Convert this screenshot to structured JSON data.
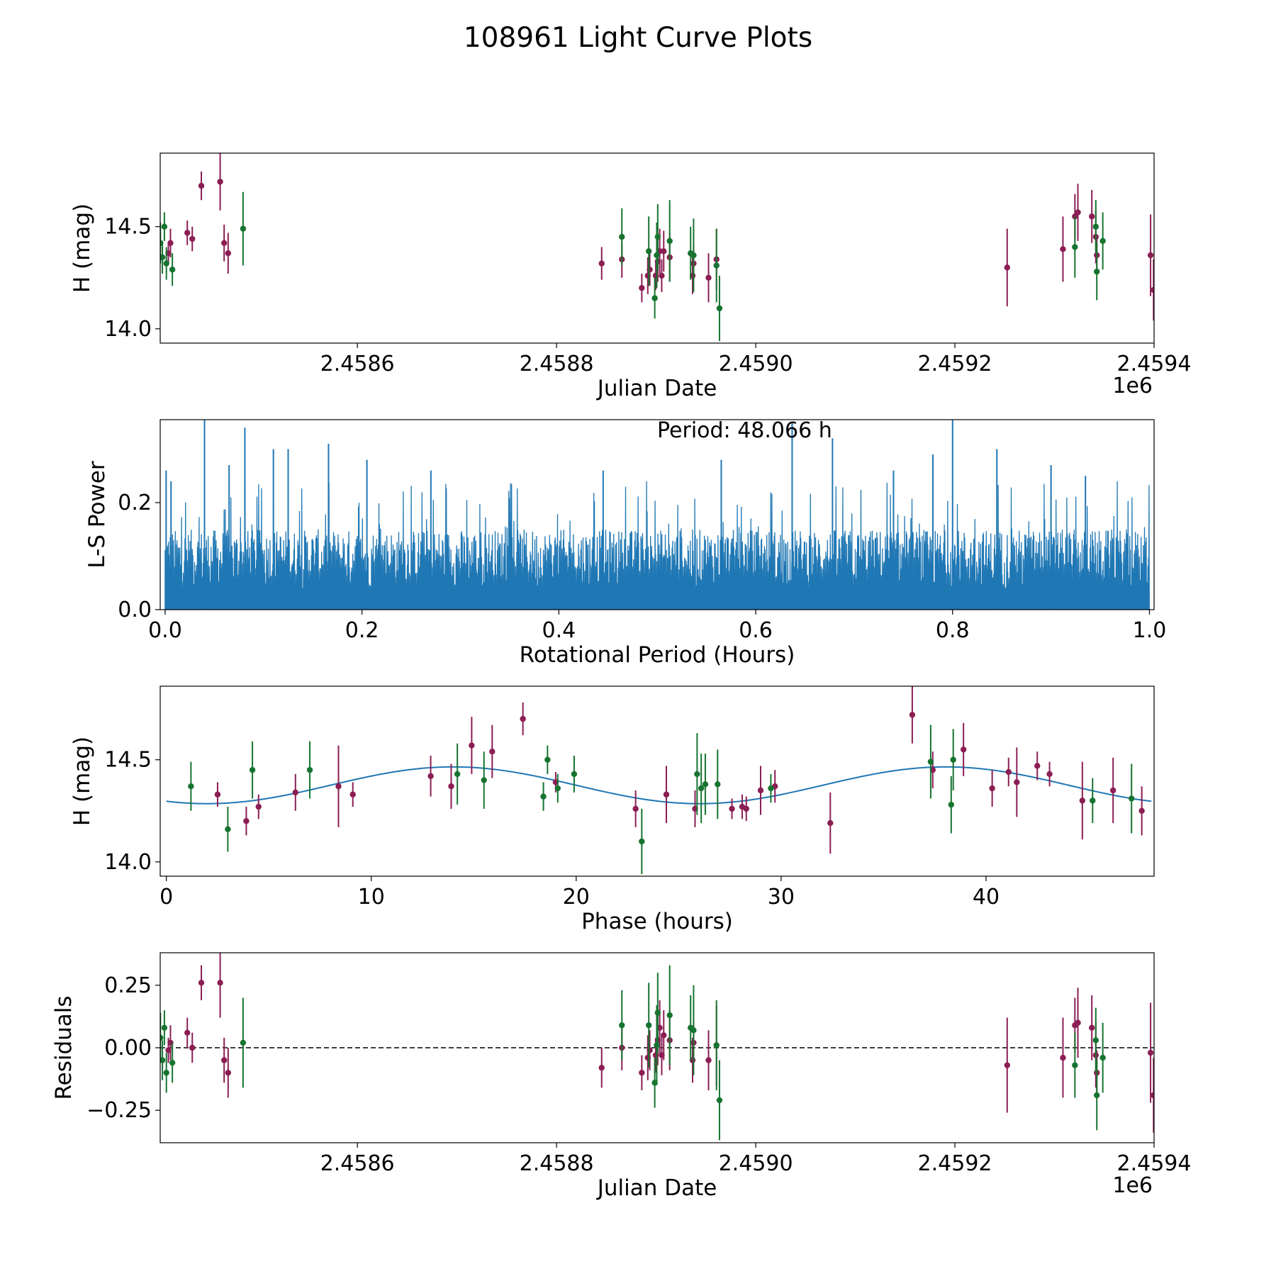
{
  "title": "108961 Light Curve Plots",
  "colors": {
    "series_a": "#8b1e54",
    "series_b": "#177430",
    "line": "#1f77b4",
    "refline": "#000000"
  },
  "chart_data": [
    {
      "id": "lightcurve",
      "type": "scatter",
      "xlabel": "Julian Date",
      "ylabel": "H (mag)",
      "x_offset_label": "1e6",
      "xlim": [
        2.458402,
        2.4594
      ],
      "ylim": [
        13.93,
        14.86
      ],
      "xticks": [
        2.4586,
        2.4588,
        2.459,
        2.4592,
        2.4594
      ],
      "xtick_labels": [
        "2.4586",
        "2.4588",
        "2.4590",
        "2.4592",
        "2.4594"
      ],
      "yticks": [
        14.0,
        14.5
      ],
      "ytick_labels": [
        "14.0",
        "14.5"
      ],
      "series": [
        {
          "name": "series-a",
          "color_key": "series_a",
          "points": [
            [
              2.4584102,
              14.37,
              0.05
            ],
            [
              2.4584123,
              14.42,
              0.07
            ],
            [
              2.4584292,
              14.47,
              0.06
            ],
            [
              2.4584342,
              14.44,
              0.06
            ],
            [
              2.4584433,
              14.7,
              0.07
            ],
            [
              2.4584622,
              14.72,
              0.14
            ],
            [
              2.4584662,
              14.42,
              0.09
            ],
            [
              2.4584702,
              14.37,
              0.1
            ],
            [
              2.4588453,
              14.32,
              0.08
            ],
            [
              2.4588656,
              14.34,
              0.09
            ],
            [
              2.4588856,
              14.2,
              0.07
            ],
            [
              2.4588916,
              14.26,
              0.09
            ],
            [
              2.4588936,
              14.29,
              0.08
            ],
            [
              2.4588996,
              14.26,
              0.07
            ],
            [
              2.4589016,
              14.33,
              0.1
            ],
            [
              2.4589036,
              14.38,
              0.11
            ],
            [
              2.4589056,
              14.26,
              0.08
            ],
            [
              2.4589076,
              14.38,
              0.1
            ],
            [
              2.4589136,
              14.35,
              0.12
            ],
            [
              2.4589366,
              14.26,
              0.09
            ],
            [
              2.4589376,
              14.32,
              0.09
            ],
            [
              2.4589526,
              14.25,
              0.12
            ],
            [
              2.4589606,
              14.34,
              0.15
            ],
            [
              2.4592525,
              14.3,
              0.19
            ],
            [
              2.4593085,
              14.39,
              0.16
            ],
            [
              2.4593205,
              14.55,
              0.11
            ],
            [
              2.4593235,
              14.57,
              0.14
            ],
            [
              2.4593375,
              14.55,
              0.13
            ],
            [
              2.4593415,
              14.45,
              0.13
            ],
            [
              2.4593425,
              14.36,
              0.09
            ],
            [
              2.4593965,
              14.36,
              0.2
            ],
            [
              2.4593995,
              14.19,
              0.15
            ]
          ]
        },
        {
          "name": "series-b",
          "color_key": "series_b",
          "points": [
            [
              2.4584022,
              14.42,
              0.1
            ],
            [
              2.4584042,
              14.35,
              0.08
            ],
            [
              2.4584062,
              14.5,
              0.07
            ],
            [
              2.4584082,
              14.32,
              0.08
            ],
            [
              2.4584142,
              14.29,
              0.08
            ],
            [
              2.4584852,
              14.49,
              0.18
            ],
            [
              2.4588656,
              14.45,
              0.14
            ],
            [
              2.4588926,
              14.38,
              0.17
            ],
            [
              2.4588986,
              14.15,
              0.1
            ],
            [
              2.4589006,
              14.36,
              0.16
            ],
            [
              2.4589016,
              14.45,
              0.16
            ],
            [
              2.4589136,
              14.43,
              0.2
            ],
            [
              2.4589346,
              14.37,
              0.13
            ],
            [
              2.4589376,
              14.36,
              0.18
            ],
            [
              2.4589606,
              14.31,
              0.18
            ],
            [
              2.4589636,
              14.1,
              0.16
            ],
            [
              2.4593205,
              14.4,
              0.15
            ],
            [
              2.4593415,
              14.5,
              0.13
            ],
            [
              2.4593425,
              14.28,
              0.14
            ],
            [
              2.4593485,
              14.43,
              0.14
            ]
          ]
        }
      ]
    },
    {
      "id": "periodogram",
      "type": "line",
      "xlabel": "Rotational Period (Hours)",
      "ylabel": "L-S Power",
      "xlim": [
        -0.005,
        1.0047
      ],
      "ylim": [
        0.0,
        0.355
      ],
      "xticks": [
        0.0,
        0.2,
        0.4,
        0.6,
        0.8,
        1.0
      ],
      "xtick_labels": [
        "0.0",
        "0.2",
        "0.4",
        "0.6",
        "0.8",
        "1.0"
      ],
      "yticks": [
        0.0,
        0.2
      ],
      "ytick_labels": [
        "0.0",
        "0.2"
      ],
      "annotation": "Period: 48.066 h",
      "noise_envelope": {
        "min_power": 0.0,
        "typical_peak": 0.15,
        "max_background_peak": 0.28
      },
      "peaks": [
        [
          0.001,
          0.26
        ],
        [
          0.006,
          0.24
        ],
        [
          0.04,
          0.36
        ],
        [
          0.065,
          0.27
        ],
        [
          0.081,
          0.34
        ],
        [
          0.11,
          0.3
        ],
        [
          0.125,
          0.3
        ],
        [
          0.166,
          0.31
        ],
        [
          0.205,
          0.28
        ],
        [
          0.27,
          0.26
        ],
        [
          0.445,
          0.26
        ],
        [
          0.565,
          0.28
        ],
        [
          0.637,
          0.35
        ],
        [
          0.678,
          0.32
        ],
        [
          0.74,
          0.26
        ],
        [
          0.78,
          0.29
        ],
        [
          0.8,
          0.36
        ],
        [
          0.845,
          0.3
        ],
        [
          0.9,
          0.27
        ],
        [
          0.935,
          0.25
        ]
      ]
    },
    {
      "id": "phased",
      "type": "scatter",
      "xlabel": "Phase (hours)",
      "ylabel": "H (mag)",
      "xlim": [
        -0.3,
        48.2
      ],
      "ylim": [
        13.93,
        14.86
      ],
      "xticks": [
        0,
        10,
        20,
        30,
        40
      ],
      "xtick_labels": [
        "0",
        "10",
        "20",
        "30",
        "40"
      ],
      "yticks": [
        14.0,
        14.5
      ],
      "ytick_labels": [
        "14.0",
        "14.5"
      ],
      "model": {
        "period_hours": 48.066,
        "mean": 14.375,
        "amplitude": 0.09,
        "peak_phase": 14.0
      },
      "series": [
        {
          "name": "series-a",
          "color_key": "series_a",
          "points": [
            [
              2.5,
              14.33,
              0.06
            ],
            [
              3.9,
              14.2,
              0.07
            ],
            [
              4.5,
              14.27,
              0.06
            ],
            [
              6.3,
              14.34,
              0.09
            ],
            [
              8.4,
              14.37,
              0.2
            ],
            [
              9.1,
              14.33,
              0.06
            ],
            [
              12.9,
              14.42,
              0.1
            ],
            [
              13.9,
              14.37,
              0.11
            ],
            [
              14.9,
              14.57,
              0.14
            ],
            [
              15.9,
              14.54,
              0.13
            ],
            [
              17.4,
              14.7,
              0.08
            ],
            [
              19.0,
              14.39,
              0.05
            ],
            [
              22.9,
              14.26,
              0.09
            ],
            [
              24.4,
              14.33,
              0.14
            ],
            [
              25.8,
              14.26,
              0.09
            ],
            [
              27.6,
              14.26,
              0.05
            ],
            [
              28.1,
              14.27,
              0.06
            ],
            [
              28.3,
              14.26,
              0.06
            ],
            [
              29.0,
              14.35,
              0.12
            ],
            [
              29.7,
              14.37,
              0.08
            ],
            [
              32.4,
              14.19,
              0.15
            ],
            [
              36.4,
              14.72,
              0.14
            ],
            [
              37.4,
              14.45,
              0.09
            ],
            [
              38.9,
              14.55,
              0.13
            ],
            [
              40.3,
              14.36,
              0.09
            ],
            [
              41.1,
              14.44,
              0.07
            ],
            [
              41.5,
              14.39,
              0.17
            ],
            [
              42.5,
              14.47,
              0.07
            ],
            [
              43.1,
              14.43,
              0.06
            ],
            [
              44.7,
              14.3,
              0.19
            ],
            [
              46.2,
              14.35,
              0.16
            ],
            [
              47.6,
              14.25,
              0.12
            ]
          ]
        },
        {
          "name": "series-b",
          "color_key": "series_b",
          "points": [
            [
              1.2,
              14.37,
              0.12
            ],
            [
              3.0,
              14.16,
              0.11
            ],
            [
              4.2,
              14.45,
              0.14
            ],
            [
              7.0,
              14.45,
              0.14
            ],
            [
              14.2,
              14.43,
              0.15
            ],
            [
              15.5,
              14.4,
              0.14
            ],
            [
              18.4,
              14.32,
              0.07
            ],
            [
              18.6,
              14.5,
              0.07
            ],
            [
              19.1,
              14.36,
              0.07
            ],
            [
              19.9,
              14.43,
              0.09
            ],
            [
              23.2,
              14.1,
              0.16
            ],
            [
              25.9,
              14.43,
              0.2
            ],
            [
              26.1,
              14.36,
              0.17
            ],
            [
              26.3,
              14.38,
              0.15
            ],
            [
              26.9,
              14.38,
              0.17
            ],
            [
              29.5,
              14.36,
              0.07
            ],
            [
              37.3,
              14.49,
              0.18
            ],
            [
              38.3,
              14.28,
              0.14
            ],
            [
              38.4,
              14.5,
              0.15
            ],
            [
              45.2,
              14.3,
              0.11
            ],
            [
              47.1,
              14.31,
              0.17
            ]
          ]
        }
      ]
    },
    {
      "id": "residuals",
      "type": "scatter",
      "xlabel": "Julian Date",
      "ylabel": "Residuals",
      "x_offset_label": "1e6",
      "xlim": [
        2.458402,
        2.4594
      ],
      "ylim": [
        -0.38,
        0.38
      ],
      "xticks": [
        2.4586,
        2.4588,
        2.459,
        2.4592,
        2.4594
      ],
      "xtick_labels": [
        "2.4586",
        "2.4588",
        "2.4590",
        "2.4592",
        "2.4594"
      ],
      "yticks": [
        0.25,
        0.0,
        -0.25
      ],
      "ytick_labels": [
        "0.25",
        "0.00",
        "−0.25"
      ],
      "reference_line": 0.0,
      "series": [
        {
          "name": "series-a",
          "color_key": "series_a",
          "points": [
            [
              2.4584102,
              -0.01,
              0.05
            ],
            [
              2.4584123,
              0.02,
              0.07
            ],
            [
              2.4584292,
              0.06,
              0.06
            ],
            [
              2.4584342,
              0.0,
              0.06
            ],
            [
              2.4584433,
              0.26,
              0.07
            ],
            [
              2.4584622,
              0.26,
              0.14
            ],
            [
              2.4584662,
              -0.05,
              0.09
            ],
            [
              2.4584702,
              -0.1,
              0.1
            ],
            [
              2.4588453,
              -0.08,
              0.08
            ],
            [
              2.4588656,
              0.0,
              0.09
            ],
            [
              2.4588856,
              -0.1,
              0.07
            ],
            [
              2.4588916,
              -0.04,
              0.09
            ],
            [
              2.4588936,
              -0.01,
              0.08
            ],
            [
              2.4588996,
              -0.03,
              0.07
            ],
            [
              2.4589016,
              0.03,
              0.1
            ],
            [
              2.4589036,
              0.08,
              0.11
            ],
            [
              2.4589056,
              -0.03,
              0.08
            ],
            [
              2.4589076,
              0.05,
              0.1
            ],
            [
              2.4589136,
              0.03,
              0.12
            ],
            [
              2.4589366,
              -0.05,
              0.09
            ],
            [
              2.4589376,
              0.02,
              0.09
            ],
            [
              2.4589526,
              -0.05,
              0.12
            ],
            [
              2.4589606,
              0.01,
              0.16
            ],
            [
              2.4592525,
              -0.07,
              0.19
            ],
            [
              2.4593085,
              -0.04,
              0.16
            ],
            [
              2.4593205,
              0.09,
              0.11
            ],
            [
              2.4593235,
              0.1,
              0.14
            ],
            [
              2.4593375,
              0.08,
              0.13
            ],
            [
              2.4593415,
              -0.03,
              0.13
            ],
            [
              2.4593425,
              -0.1,
              0.09
            ],
            [
              2.4593965,
              -0.02,
              0.2
            ],
            [
              2.4593995,
              -0.19,
              0.15
            ]
          ]
        },
        {
          "name": "series-b",
          "color_key": "series_b",
          "points": [
            [
              2.4584022,
              0.04,
              0.1
            ],
            [
              2.4584042,
              -0.05,
              0.08
            ],
            [
              2.4584062,
              0.08,
              0.07
            ],
            [
              2.4584082,
              -0.1,
              0.08
            ],
            [
              2.4584142,
              -0.06,
              0.08
            ],
            [
              2.4584852,
              0.02,
              0.18
            ],
            [
              2.4588656,
              0.09,
              0.14
            ],
            [
              2.4588926,
              0.09,
              0.17
            ],
            [
              2.4588986,
              -0.14,
              0.1
            ],
            [
              2.4589006,
              0.01,
              0.16
            ],
            [
              2.4589016,
              0.14,
              0.16
            ],
            [
              2.4589136,
              0.13,
              0.2
            ],
            [
              2.4589346,
              0.08,
              0.13
            ],
            [
              2.4589376,
              0.07,
              0.18
            ],
            [
              2.4589606,
              0.01,
              0.18
            ],
            [
              2.4589636,
              -0.21,
              0.16
            ],
            [
              2.4593205,
              -0.07,
              0.13
            ],
            [
              2.4593415,
              0.03,
              0.13
            ],
            [
              2.4593425,
              -0.19,
              0.14
            ],
            [
              2.4593485,
              -0.04,
              0.14
            ]
          ]
        }
      ]
    }
  ]
}
